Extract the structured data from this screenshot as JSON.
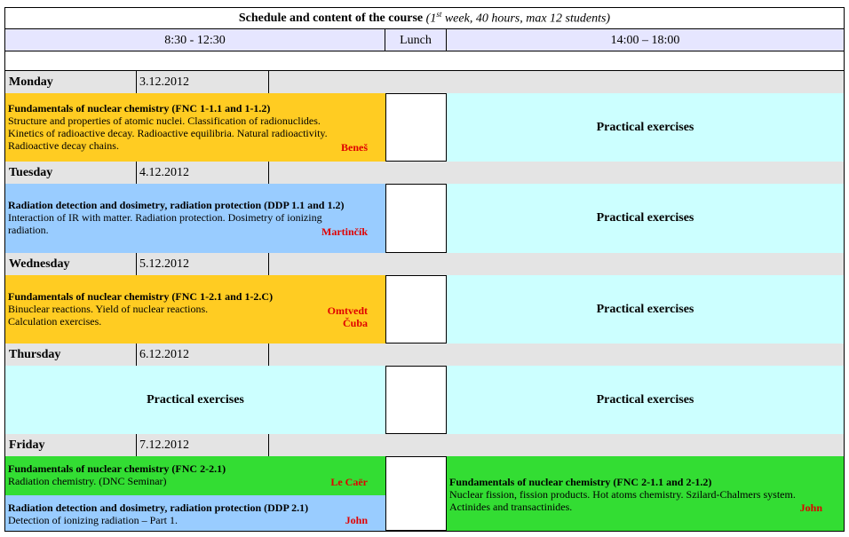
{
  "title": {
    "main": "Schedule and content of the course",
    "sub_open": "(1",
    "sub_sup": "st",
    "sub_rest": " week, 40 hours, max 12 students)"
  },
  "columns": {
    "morning": "8:30 - 12:30",
    "lunch": "Lunch",
    "afternoon": "14:00 – 18:00"
  },
  "days": [
    {
      "name": "Monday",
      "date": "3.12.2012"
    },
    {
      "name": "Tuesday",
      "date": "4.12.2012"
    },
    {
      "name": "Wednesday",
      "date": "5.12.2012"
    },
    {
      "name": "Thursday",
      "date": "6.12.2012"
    },
    {
      "name": "Friday",
      "date": "7.12.2012"
    }
  ],
  "sessions": {
    "monday_am": {
      "title": "Fundamentals of nuclear chemistry (FNC 1-1.1 and 1-1.2)",
      "line1": "Structure and properties of atomic nuclei. Classification of radionuclides.",
      "line2": "Kinetics of radioactive decay. Radioactive equilibria. Natural radioactivity.",
      "line3": "Radioactive decay chains.",
      "lecturer": "Beneš"
    },
    "tuesday_am": {
      "title": "Radiation detection and dosimetry, radiation protection (DDP 1.1 and 1.2)",
      "line1": "Interaction of IR with matter. Radiation protection. Dosimetry of ionizing",
      "line2": "radiation.",
      "lecturer": "Martinčík"
    },
    "wednesday_am": {
      "title": "Fundamentals of nuclear chemistry (FNC 1-2.1 and 1-2.C)",
      "line1": "Binuclear reactions. Yield of nuclear reactions.",
      "line2": "Calculation exercises.",
      "lecturer1": "Omtvedt",
      "lecturer2": "Čuba"
    },
    "practical": "Practical exercises",
    "friday_am1": {
      "title": "Fundamentals of nuclear chemistry (FNC 2-2.1)",
      "line1": "Radiation chemistry. (DNC Seminar)",
      "lecturer": "Le Caër"
    },
    "friday_am2": {
      "title": "Radiation detection and dosimetry, radiation protection (DDP 2.1)",
      "line1": "Detection of ionizing radiation – Part 1.",
      "lecturer": "John"
    },
    "friday_pm": {
      "title": "Fundamentals of nuclear chemistry (FNC 2-1.1 and 2-1.2)",
      "line1": "Nuclear fission, fission products. Hot atoms chemistry. Szilard-Chalmers system.",
      "line2": "Actinides and transactinides.",
      "lecturer": "John"
    }
  },
  "colors": {
    "fnc": "#ffcc22",
    "ddp": "#99ccff",
    "practical": "#ccffff",
    "friday_green": "#33dd33",
    "day_row": "#e4e4e4",
    "header_row": "#e6e6ff",
    "lecturer": "#e00000"
  }
}
